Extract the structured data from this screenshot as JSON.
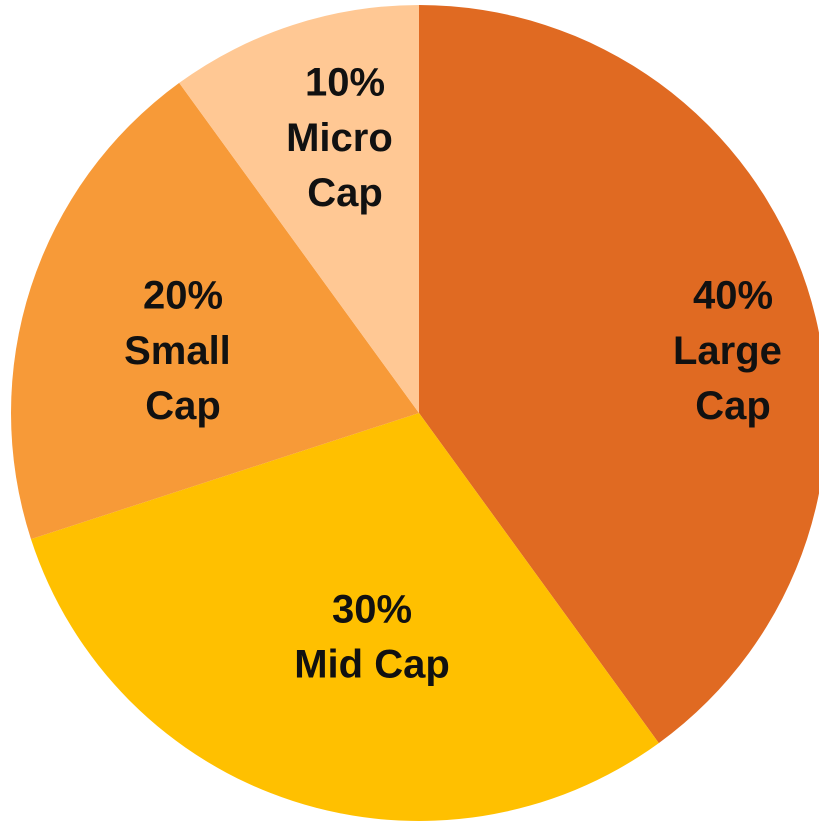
{
  "chart_data": {
    "type": "pie",
    "categories": [
      "Large Cap",
      "Mid Cap",
      "Small Cap",
      "Micro Cap"
    ],
    "values": [
      40,
      30,
      20,
      10
    ],
    "value_labels": [
      "40%",
      "30%",
      "20%",
      "10%"
    ],
    "colors": [
      "#e06a22",
      "#ffc000",
      "#f79a38",
      "#ffc894"
    ]
  }
}
